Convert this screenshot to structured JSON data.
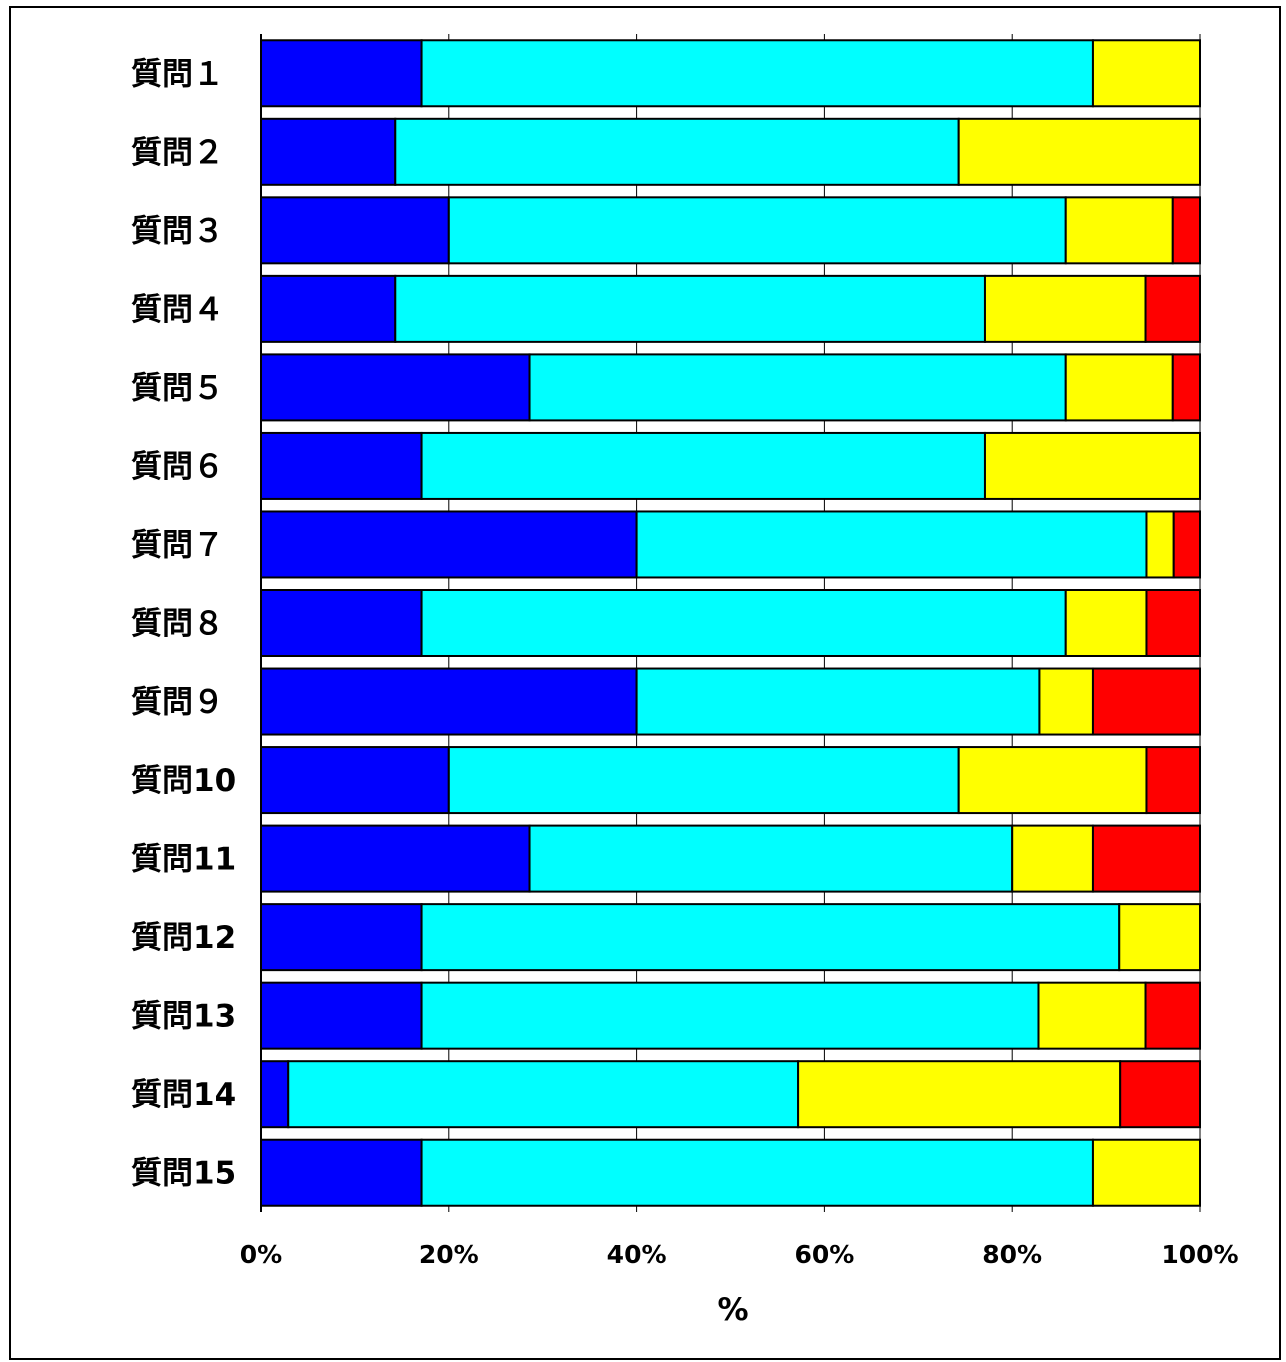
{
  "chart_data": {
    "type": "bar",
    "orientation": "horizontal",
    "stacked": "percent",
    "categories": [
      "質問１",
      "質問２",
      "質問３",
      "質問４",
      "質問５",
      "質問６",
      "質問７",
      "質問８",
      "質問９",
      "質問10",
      "質問11",
      "質問12",
      "質問13",
      "質問14",
      "質問15"
    ],
    "series": [
      {
        "color": "#0000ff",
        "values": [
          17.1,
          14.3,
          20.0,
          14.3,
          28.6,
          17.1,
          40.0,
          17.1,
          40.0,
          20.0,
          28.6,
          17.1,
          17.1,
          2.9,
          17.1
        ]
      },
      {
        "color": "#00ffff",
        "values": [
          71.5,
          60.0,
          65.7,
          62.8,
          57.1,
          60.0,
          54.3,
          68.6,
          42.9,
          54.3,
          51.4,
          74.3,
          65.7,
          54.3,
          71.5
        ]
      },
      {
        "color": "#ffff00",
        "values": [
          11.4,
          25.7,
          11.4,
          17.1,
          11.4,
          22.9,
          2.9,
          8.6,
          5.7,
          20.0,
          8.6,
          8.6,
          11.4,
          34.3,
          11.4
        ]
      },
      {
        "color": "#ff0000",
        "values": [
          0,
          0,
          2.9,
          5.8,
          2.9,
          0,
          2.8,
          5.7,
          11.4,
          5.7,
          11.4,
          0,
          5.8,
          8.5,
          0
        ]
      }
    ],
    "xlim": [
      0,
      100
    ],
    "xticks": [
      "0%",
      "20%",
      "40%",
      "60%",
      "80%",
      "100%"
    ],
    "xlabel": "%",
    "grid": "vertical",
    "legend": "none"
  }
}
